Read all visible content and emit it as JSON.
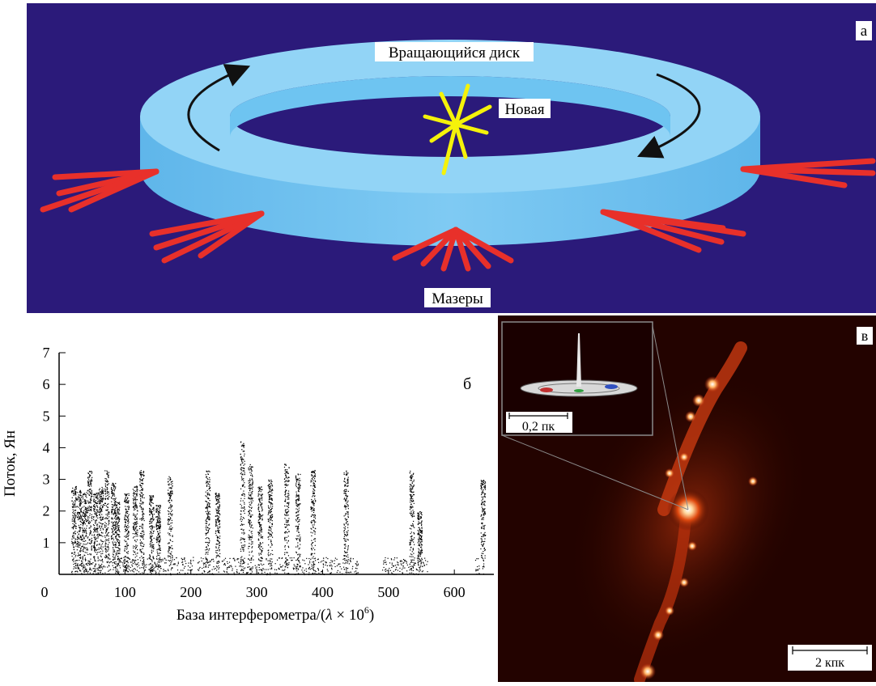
{
  "panel_a": {
    "letter": "а",
    "disk_label": "Вращающийся диск",
    "nova_label": "Новая",
    "masers_label": "Мазеры",
    "colors": {
      "background": "#2b1a7a",
      "disk": "#8fd3f5",
      "masers": "#e8302a",
      "nova": "#f5f20a"
    }
  },
  "panel_b": {
    "letter": "б",
    "chart_data": {
      "type": "scatter",
      "xlabel_prefix": "База интерферометра/(",
      "xlabel_lambda": "λ",
      "xlabel_times": " × 10",
      "xlabel_exp": "6",
      "xlabel_suffix": ")",
      "ylabel": "Поток, Ян",
      "xlim": [
        0,
        660
      ],
      "ylim": [
        0,
        7
      ],
      "x_ticks": [
        "0",
        "100",
        "200",
        "300",
        "400",
        "500",
        "600"
      ],
      "y_ticks": [
        "1",
        "2",
        "3",
        "4",
        "5",
        "6",
        "7"
      ],
      "peaks": [
        {
          "x": 22,
          "y": 2.8
        },
        {
          "x": 30,
          "y": 2.7
        },
        {
          "x": 38,
          "y": 2.6
        },
        {
          "x": 46,
          "y": 3.3
        },
        {
          "x": 55,
          "y": 2.6
        },
        {
          "x": 63,
          "y": 2.8
        },
        {
          "x": 72,
          "y": 3.3
        },
        {
          "x": 82,
          "y": 2.9
        },
        {
          "x": 88,
          "y": 2.3
        },
        {
          "x": 102,
          "y": 2.6
        },
        {
          "x": 115,
          "y": 2.8
        },
        {
          "x": 125,
          "y": 3.3
        },
        {
          "x": 140,
          "y": 2.5
        },
        {
          "x": 150,
          "y": 2.2
        },
        {
          "x": 168,
          "y": 3.1
        },
        {
          "x": 225,
          "y": 3.3
        },
        {
          "x": 240,
          "y": 2.6
        },
        {
          "x": 278,
          "y": 4.2
        },
        {
          "x": 290,
          "y": 3.5
        },
        {
          "x": 305,
          "y": 2.8
        },
        {
          "x": 320,
          "y": 3.0
        },
        {
          "x": 345,
          "y": 3.5
        },
        {
          "x": 362,
          "y": 3.2
        },
        {
          "x": 385,
          "y": 3.3
        },
        {
          "x": 435,
          "y": 3.3
        },
        {
          "x": 535,
          "y": 3.3
        },
        {
          "x": 547,
          "y": 2.0
        },
        {
          "x": 643,
          "y": 3.0
        }
      ]
    }
  },
  "panel_c": {
    "letter": "в",
    "inset_scale": "0,2 пк",
    "main_scale": "2 кпк"
  }
}
